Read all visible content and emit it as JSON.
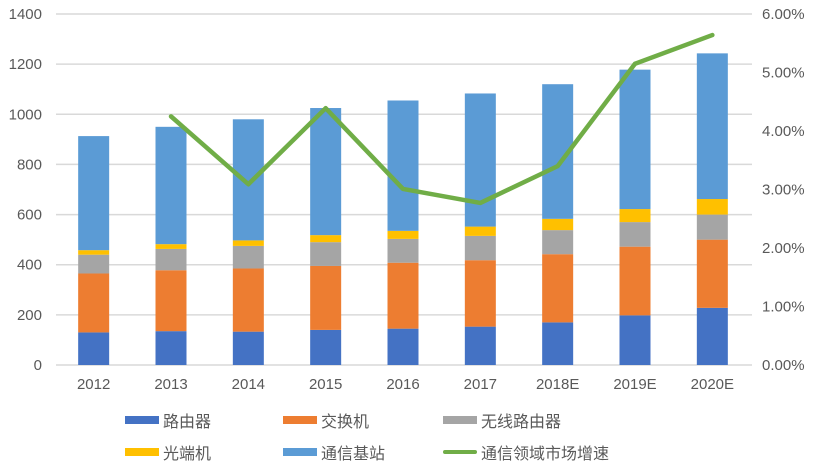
{
  "chart_data": {
    "type": "bar",
    "subtype": "stacked bar + line (dual axis)",
    "title": "",
    "xlabel": "",
    "ylabel": "",
    "y2label": "",
    "categories": [
      "2012",
      "2013",
      "2014",
      "2015",
      "2016",
      "2017",
      "2018E",
      "2019E",
      "2020E"
    ],
    "series": [
      {
        "name": "路由器",
        "type": "bar",
        "axis": "left",
        "color": "#4472C4",
        "values": [
          130,
          135,
          133,
          140,
          145,
          153,
          170,
          198,
          228
        ]
      },
      {
        "name": "交换机",
        "type": "bar",
        "axis": "left",
        "color": "#ED7D31",
        "values": [
          235,
          243,
          252,
          255,
          263,
          265,
          272,
          274,
          272
        ]
      },
      {
        "name": "无线路由器",
        "type": "bar",
        "axis": "left",
        "color": "#A5A5A5",
        "values": [
          75,
          85,
          90,
          95,
          95,
          97,
          96,
          98,
          100
        ]
      },
      {
        "name": "光端机",
        "type": "bar",
        "axis": "left",
        "color": "#FFC000",
        "values": [
          18,
          19,
          22,
          28,
          32,
          37,
          45,
          52,
          62
        ]
      },
      {
        "name": "通信基站",
        "type": "bar",
        "axis": "left",
        "color": "#5B9BD5",
        "values": [
          455,
          468,
          483,
          507,
          520,
          531,
          537,
          556,
          581
        ]
      },
      {
        "name": "通信领域市场增速",
        "type": "line",
        "axis": "right",
        "color": "#70AD47",
        "values": [
          null,
          4.25,
          3.09,
          4.39,
          3.01,
          2.77,
          3.4,
          5.15,
          5.64
        ]
      }
    ],
    "totals": [
      913,
      950,
      980,
      1025,
      1055,
      1083,
      1120,
      1178,
      1243
    ],
    "ylim": [
      0,
      1400
    ],
    "yticks": [
      "0",
      "200",
      "400",
      "600",
      "800",
      "1000",
      "1200",
      "1400"
    ],
    "y2lim": [
      0,
      6
    ],
    "y2ticks": [
      "0.00%",
      "1.00%",
      "2.00%",
      "3.00%",
      "4.00%",
      "5.00%",
      "6.00%"
    ],
    "grid": true,
    "legend_position": "bottom"
  },
  "legend": {
    "items": [
      {
        "label": "路由器",
        "color": "#4472C4",
        "kind": "bar"
      },
      {
        "label": "交换机",
        "color": "#ED7D31",
        "kind": "bar"
      },
      {
        "label": "无线路由器",
        "color": "#A5A5A5",
        "kind": "bar"
      },
      {
        "label": "光端机",
        "color": "#FFC000",
        "kind": "bar"
      },
      {
        "label": "通信基站",
        "color": "#5B9BD5",
        "kind": "bar"
      },
      {
        "label": "通信领域市场增速",
        "color": "#70AD47",
        "kind": "line"
      }
    ]
  },
  "colors": {
    "grid": "#D9D9D9",
    "text": "#595959",
    "background": "#FFFFFF"
  }
}
